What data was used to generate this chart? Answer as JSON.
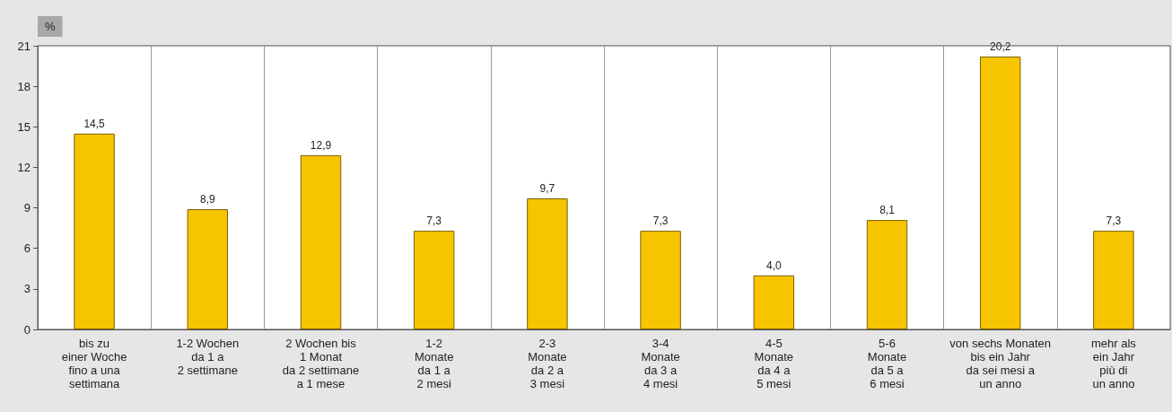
{
  "chart_data": {
    "type": "bar",
    "ylabel": "%",
    "categories": [
      "bis zu\neiner Woche\nfino a una\nsettimana",
      "1-2 Wochen\nda 1 a\n2 settimane",
      "2 Wochen bis\n1 Monat\nda 2 settimane\na 1 mese",
      "1-2\nMonate\nda 1 a\n2 mesi",
      "2-3\nMonate\nda 2 a\n3 mesi",
      "3-4\nMonate\nda 3 a\n4 mesi",
      "4-5\nMonate\nda 4 a\n5 mesi",
      "5-6\nMonate\nda 5 a\n6 mesi",
      "von sechs Monaten\nbis ein Jahr\nda sei mesi a\nun anno",
      "mehr als\nein Jahr\npiù di\nun anno"
    ],
    "values": [
      14.5,
      8.9,
      12.9,
      7.3,
      9.7,
      7.3,
      4.0,
      8.1,
      20.2,
      7.3
    ],
    "value_labels": [
      "14,5",
      "8,9",
      "12,9",
      "7,3",
      "9,7",
      "7,3",
      "4,0",
      "8,1",
      "20,2",
      "7,3"
    ],
    "color": "#f7c400",
    "ylim": [
      0,
      21
    ],
    "yticks": [
      0,
      3,
      6,
      9,
      12,
      15,
      18,
      21
    ],
    "grid": "x"
  }
}
